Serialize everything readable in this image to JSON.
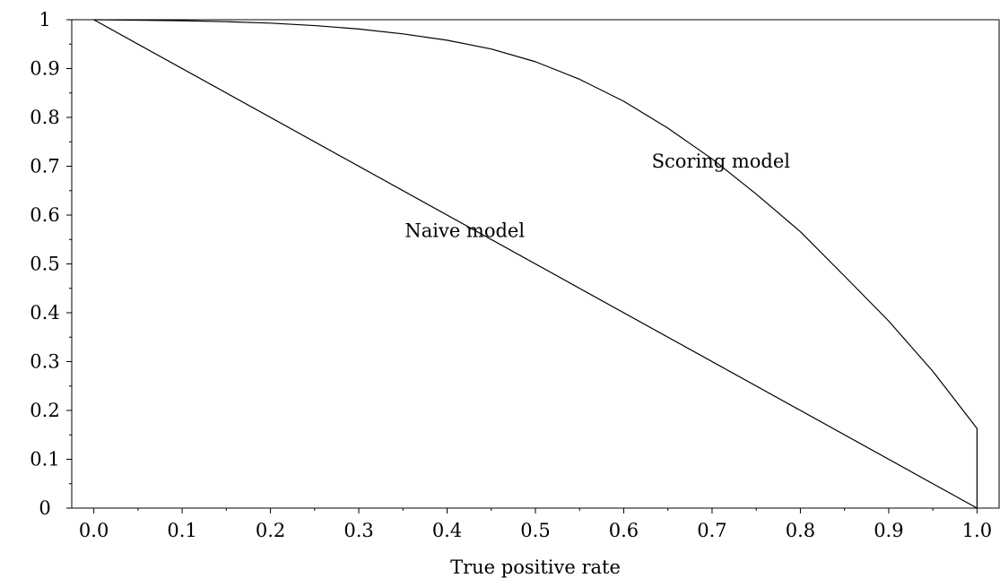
{
  "chart_data": {
    "type": "line",
    "title": "",
    "xlabel": "True positive rate",
    "ylabel": "",
    "xlim": [
      -0.025,
      1.025
    ],
    "ylim": [
      0,
      1
    ],
    "x_ticks": [
      "0.0",
      "0.1",
      "0.2",
      "0.3",
      "0.4",
      "0.5",
      "0.6",
      "0.7",
      "0.8",
      "0.9",
      "1.0"
    ],
    "y_ticks": [
      "0",
      "0.1",
      "0.2",
      "0.3",
      "0.4",
      "0.5",
      "0.6",
      "0.7",
      "0.8",
      "0.9",
      "1"
    ],
    "grid": false,
    "legend": "none",
    "series": [
      {
        "key": "naive",
        "x": [
          0.0,
          1.0
        ],
        "y": [
          1.0,
          0.0
        ]
      },
      {
        "key": "scoring",
        "x": [
          0.0,
          0.05,
          0.1,
          0.15,
          0.2,
          0.25,
          0.3,
          0.35,
          0.4,
          0.45,
          0.5,
          0.55,
          0.6,
          0.65,
          0.7,
          0.75,
          0.8,
          0.85,
          0.9,
          0.95,
          1.0,
          1.0
        ],
        "y": [
          1.0,
          0.999,
          0.998,
          0.996,
          0.993,
          0.988,
          0.981,
          0.971,
          0.958,
          0.94,
          0.914,
          0.878,
          0.833,
          0.778,
          0.715,
          0.643,
          0.566,
          0.475,
          0.383,
          0.28,
          0.163,
          0.0
        ]
      }
    ],
    "annotations": [
      {
        "key": "naive",
        "text": "Naive model",
        "x": 0.42,
        "y": 0.555
      },
      {
        "key": "scoring",
        "text": "Scoring model",
        "x": 0.71,
        "y": 0.697
      }
    ]
  }
}
